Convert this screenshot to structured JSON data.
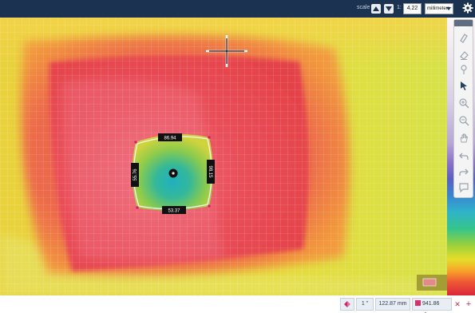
{
  "toolbar": {
    "scale_label": "scale",
    "scale_separator": "1:",
    "scale_value": "4.22",
    "unit_value": "millimeters",
    "colors": {
      "bar": "#1b3350",
      "button": "#e8ecf1"
    }
  },
  "thermal_image": {
    "measurement_labels": {
      "top": "86.94",
      "bottom": "53.37",
      "left": "55.76",
      "right": "98.15"
    },
    "colors": {
      "outer": "#e8d63a",
      "warm": "#f19a3a",
      "hot": "#e74a4a",
      "core": "#ee5e6b",
      "cool_ring": "#a8d44c",
      "cool_core": "#27b3b6",
      "selection_handle": "#d6226a"
    }
  },
  "palette": {
    "tools": [
      "annotate-icon",
      "eraser-icon",
      "pin-icon",
      "pointer-icon",
      "zoom-in-icon",
      "zoom-out-icon",
      "pan-icon",
      "undo-icon",
      "redo-icon",
      "comment-icon"
    ]
  },
  "statusbar": {
    "scale_item": "1 \"",
    "length": "122.87 mm",
    "area": "941.86 mm²"
  }
}
